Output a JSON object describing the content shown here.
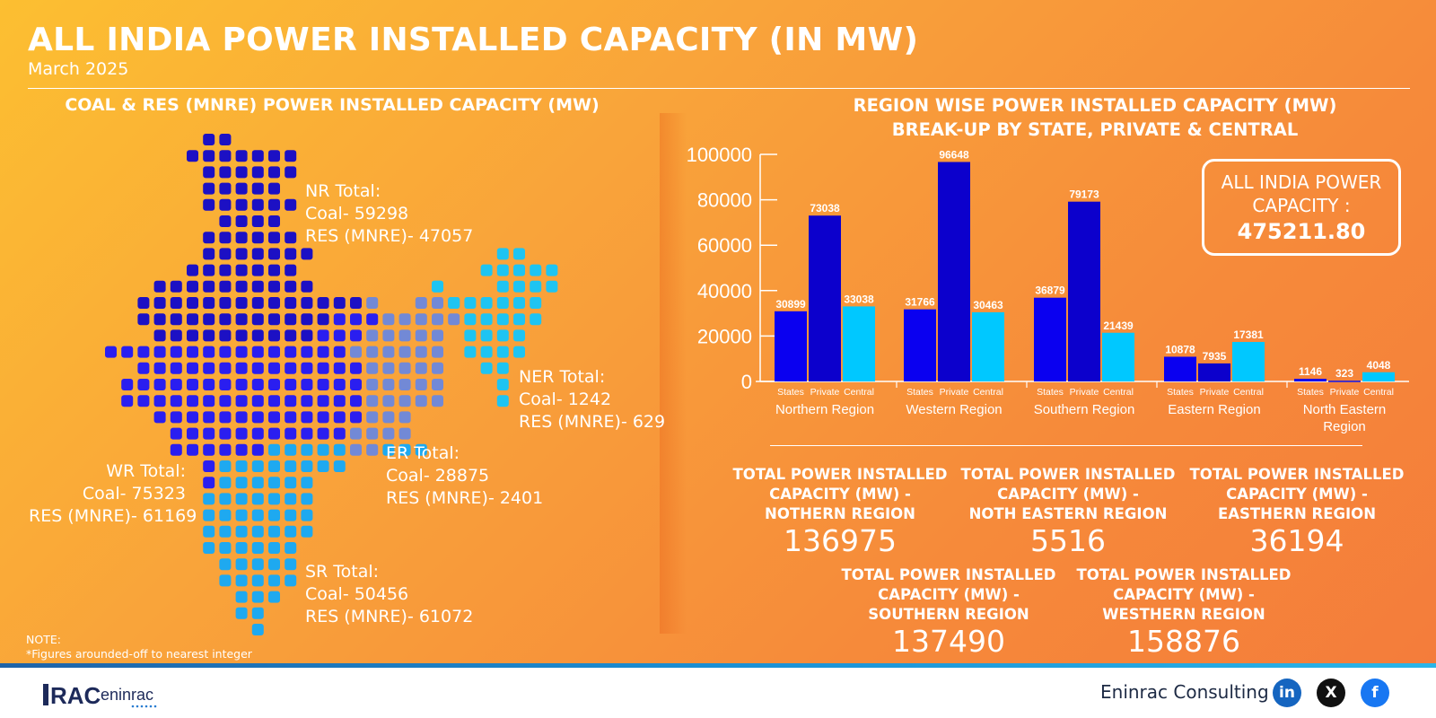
{
  "header": {
    "title": "ALL INDIA POWER INSTALLED CAPACITY (IN MW)",
    "subtitle": "March 2025"
  },
  "left": {
    "title": "COAL & RES (MNRE) POWER INSTALLED CAPACITY (MW)",
    "regions": {
      "nr": {
        "title": "NR Total:",
        "coal": "Coal- 59298",
        "res": "RES (MNRE)- 47057"
      },
      "ner": {
        "title": "NER Total:",
        "coal": "Coal- 1242",
        "res": "RES (MNRE)-  629"
      },
      "er": {
        "title": "ER Total:",
        "coal": "Coal- 28875",
        "res": "RES (MNRE)- 2401"
      },
      "wr": {
        "title": "WR Total:",
        "coal": "Coal- 75323",
        "res": "RES (MNRE)- 61169"
      },
      "sr": {
        "title": "SR Total:",
        "coal": "Coal- 50456",
        "res": "RES (MNRE)- 61072"
      }
    },
    "note": {
      "label": "NOTE:",
      "text": "*Figures arounded-off to nearest integer"
    },
    "region_colors": {
      "nr": "#1c10c4",
      "wr": "#2a1ef0",
      "er": "#7289d6",
      "ner": "#1ec4f2",
      "sr": "#1ea9f0"
    }
  },
  "chart_title_line1": "REGION WISE POWER INSTALLED CAPACITY (MW)",
  "chart_title_line2": "BREAK-UP BY STATE, PRIVATE & CENTRAL",
  "total_box": {
    "label": "ALL INDIA POWER CAPACITY :",
    "value": "475211.80"
  },
  "chart_data": {
    "type": "bar",
    "title": "REGION WISE POWER INSTALLED CAPACITY (MW) BREAK-UP BY STATE, PRIVATE & CENTRAL",
    "categories": [
      "Northern Region",
      "Western Region",
      "Southern Region",
      "Eastern Region",
      "North Eastern Region"
    ],
    "series": [
      {
        "name": "States",
        "values": [
          30899,
          31766,
          36879,
          10878,
          1146
        ],
        "color": "#0a00f0"
      },
      {
        "name": "Private",
        "values": [
          73038,
          96648,
          79173,
          7935,
          323
        ],
        "color": "#0c00cc"
      },
      {
        "name": "Central",
        "values": [
          33038,
          30463,
          21439,
          17381,
          4048
        ],
        "color": "#00c8ff"
      }
    ],
    "ylim": [
      0,
      100000
    ],
    "yticks": [
      "0",
      "20000",
      "40000",
      "60000",
      "80000",
      "100000"
    ],
    "legend": "none",
    "grid": false
  },
  "stats": [
    {
      "label": "TOTAL POWER INSTALLED\nCAPACITY (MW) -\nNOTHERN REGION",
      "value": "136975"
    },
    {
      "label": "TOTAL POWER INSTALLED\nCAPACITY (MW) -\nNOTH EASTERN REGION",
      "value": "5516"
    },
    {
      "label": "TOTAL POWER INSTALLED\nCAPACITY (MW) -\nEASTHERN REGION",
      "value": "36194"
    },
    {
      "label": "TOTAL POWER INSTALLED\nCAPACITY (MW) -\nSOUTHERN REGION",
      "value": "137490"
    },
    {
      "label": "TOTAL POWER INSTALLED\nCAPACITY (MW) -\nWESTHERN REGION",
      "value": "158876"
    }
  ],
  "footer": {
    "logo": "RAC eninrac",
    "brand": "Eninrac Consulting",
    "social": [
      {
        "icon": "linkedin-icon",
        "glyph": "in",
        "color": "#1565c0"
      },
      {
        "icon": "x-icon",
        "glyph": "X",
        "color": "#111111"
      },
      {
        "icon": "facebook-icon",
        "glyph": "f",
        "color": "#1877f2"
      }
    ]
  }
}
